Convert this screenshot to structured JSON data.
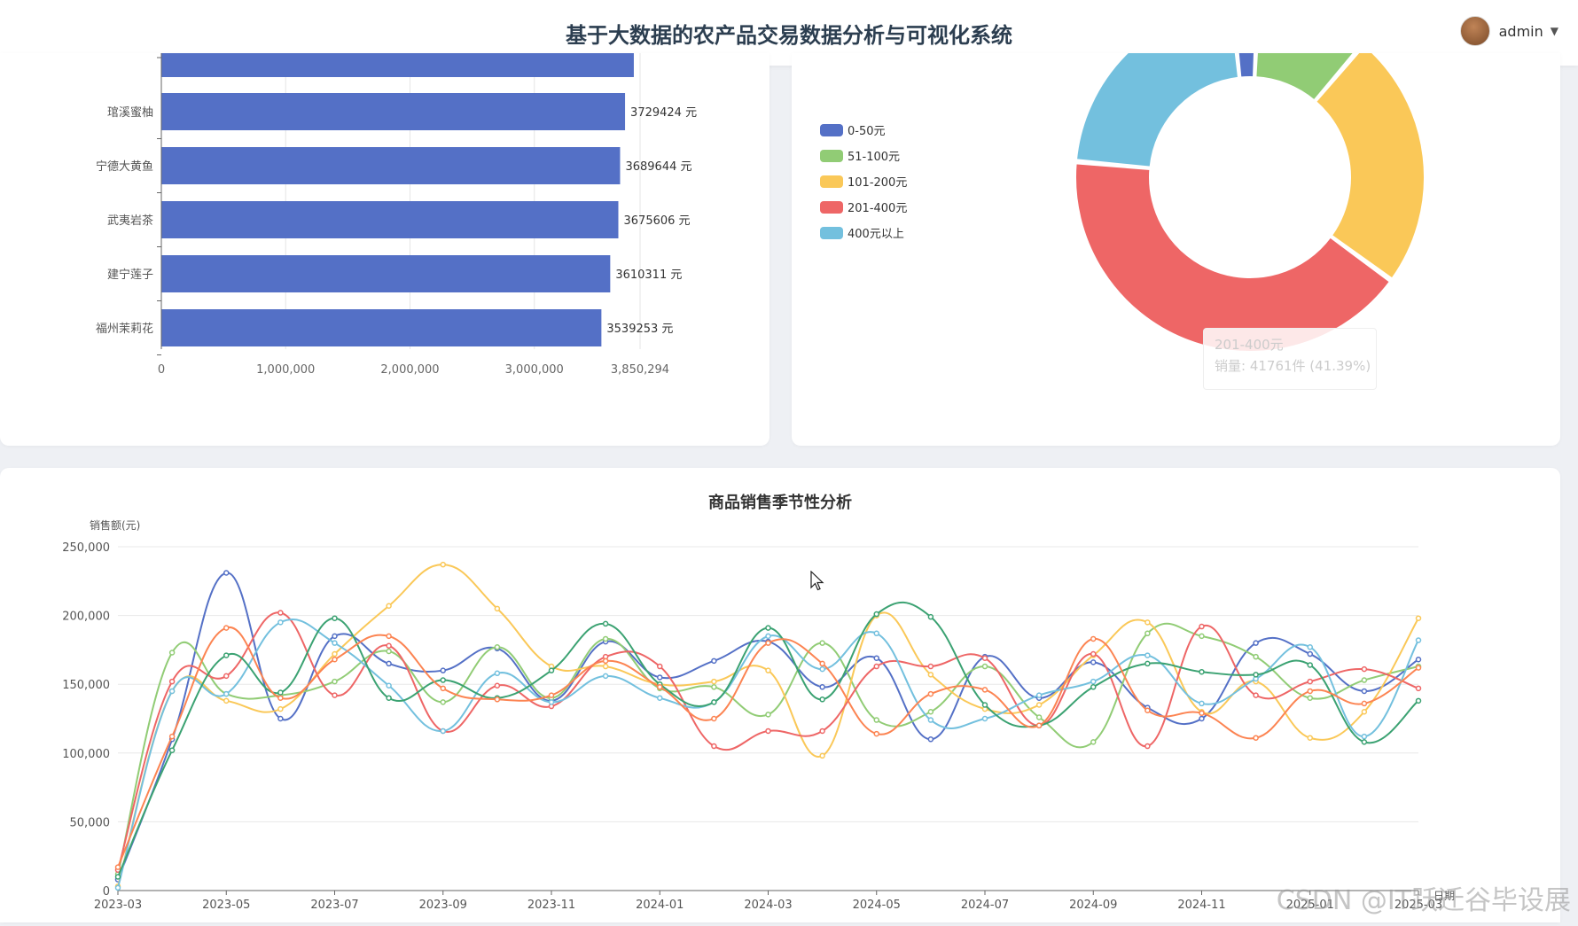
{
  "header": {
    "title": "基于大数据的农产品交易数据分析与可视化系统",
    "username": "admin",
    "icons": {
      "avatar": "user-avatar",
      "dropdown": "chevron-down-icon"
    }
  },
  "chart_data": [
    {
      "type": "bar",
      "orientation": "horizontal",
      "categories": [
        "琯溪蜜柚",
        "宁德大黄鱼",
        "武夷岩茶",
        "建宁莲子",
        "福州茉莉花"
      ],
      "values": [
        3729424,
        3689644,
        3675606,
        3610311,
        3539253
      ],
      "partial_top_bar_value": 3800000,
      "value_suffix": " 元",
      "value_labels": [
        "3729424 元",
        "3689644 元",
        "3675606 元",
        "3610311 元",
        "3539253 元"
      ],
      "xlim": [
        0,
        3850294
      ],
      "x_ticks": [
        "0",
        "1,000,000",
        "2,000,000",
        "3,000,000",
        "3,850,294"
      ],
      "color": "#5470c6",
      "grid": true
    },
    {
      "type": "pie",
      "donut": true,
      "labels": [
        "0-50元",
        "51-100元",
        "101-200元",
        "201-400元",
        "400元以上"
      ],
      "values": [
        2.4,
        10.5,
        23.8,
        41.39,
        21.9
      ],
      "colors": [
        "#5470c6",
        "#91cc75",
        "#fac858",
        "#ee6666",
        "#73c0de"
      ],
      "legend_position": "left",
      "tooltip": {
        "line1": "201-400元",
        "line2": "销量: 41761件 (41.39%)"
      }
    },
    {
      "type": "line",
      "title": "商品销售季节性分析",
      "ylabel": "销售额(元)",
      "xlabel": "日期",
      "ylim": [
        0,
        250000
      ],
      "y_ticks": [
        "0",
        "50,000",
        "100,000",
        "150,000",
        "200,000",
        "250,000"
      ],
      "x_tick_labels": [
        "2023-03",
        "2023-05",
        "2023-07",
        "2023-09",
        "2023-11",
        "2024-01",
        "2024-03",
        "2024-05",
        "2024-07",
        "2024-09",
        "2024-11",
        "2025-01",
        "2025-03"
      ],
      "x": [
        "2023-03",
        "2023-04",
        "2023-05",
        "2023-06",
        "2023-07",
        "2023-08",
        "2023-09",
        "2023-10",
        "2023-11",
        "2023-12",
        "2024-01",
        "2024-02",
        "2024-03",
        "2024-04",
        "2024-05",
        "2024-06",
        "2024-07",
        "2024-08",
        "2024-09",
        "2024-10",
        "2024-11",
        "2024-12",
        "2025-01",
        "2025-02",
        "2025-03"
      ],
      "smooth": true,
      "grid": true,
      "series": [
        {
          "color": "#5470c6",
          "values": [
            8000,
            110000,
            231000,
            125000,
            185000,
            165000,
            160000,
            176000,
            138000,
            181000,
            155000,
            167000,
            181000,
            148000,
            169000,
            110000,
            170000,
            140000,
            166000,
            133000,
            125000,
            180000,
            172000,
            145000,
            168000
          ]
        },
        {
          "color": "#91cc75",
          "values": [
            12000,
            173000,
            143000,
            142000,
            152000,
            174000,
            137000,
            177000,
            140000,
            183000,
            147000,
            148000,
            128000,
            180000,
            124000,
            130000,
            163000,
            126000,
            108000,
            187000,
            185000,
            170000,
            140000,
            153000,
            163000
          ]
        },
        {
          "color": "#fac858",
          "values": [
            3000,
            145000,
            138000,
            132000,
            172000,
            207000,
            237000,
            205000,
            163000,
            163000,
            150000,
            152000,
            160000,
            98000,
            200000,
            157000,
            132000,
            135000,
            171000,
            195000,
            130000,
            152000,
            111000,
            130000,
            198000
          ]
        },
        {
          "color": "#ee6666",
          "values": [
            15000,
            152000,
            156000,
            202000,
            142000,
            178000,
            116000,
            149000,
            134000,
            170000,
            163000,
            105000,
            116000,
            116000,
            163000,
            163000,
            169000,
            120000,
            172000,
            105000,
            192000,
            142000,
            152000,
            161000,
            147000
          ]
        },
        {
          "color": "#73c0de",
          "values": [
            2000,
            145000,
            143000,
            195000,
            180000,
            149000,
            116000,
            158000,
            137000,
            156000,
            140000,
            137000,
            185000,
            161000,
            187000,
            124000,
            125000,
            142000,
            152000,
            171000,
            136000,
            154000,
            177000,
            112000,
            182000
          ]
        },
        {
          "color": "#3ba272",
          "values": [
            10000,
            102000,
            171000,
            144000,
            198000,
            140000,
            153000,
            140000,
            160000,
            194000,
            150000,
            137000,
            191000,
            139000,
            201000,
            199000,
            135000,
            120000,
            148000,
            165000,
            159000,
            157000,
            164000,
            108000,
            138000
          ]
        },
        {
          "color": "#fc8452",
          "values": [
            17000,
            112000,
            191000,
            140000,
            168000,
            185000,
            147000,
            139000,
            142000,
            167000,
            148000,
            125000,
            180000,
            165000,
            114000,
            143000,
            146000,
            120000,
            183000,
            131000,
            129000,
            111000,
            145000,
            136000,
            162000
          ]
        }
      ]
    }
  ],
  "watermark": "CSDN @IT跃迁谷毕设展"
}
